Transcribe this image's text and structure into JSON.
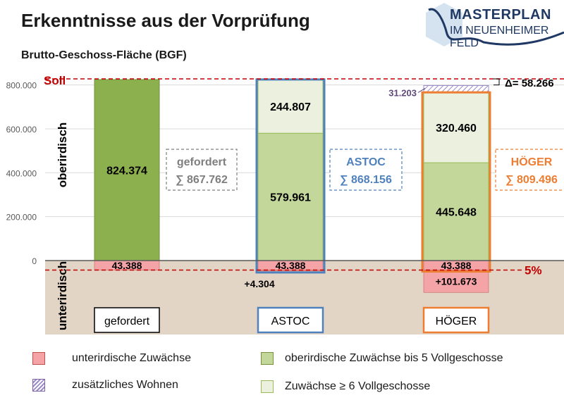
{
  "title": "Erkenntnisse aus der Vorprüfung",
  "subtitle": "Brutto-Geschoss-Fläche (BGF)",
  "logo": {
    "line1": "MASTERPLAN",
    "line2": "IM NEUENHEIMER FELD"
  },
  "colors": {
    "unterirdisch": "#f4a3a6",
    "oberirdisch": "#c4d79b",
    "vollgeschosse": "#ebf1de",
    "gefordert_bar": "#8db04e",
    "astoc": "#4f81bd",
    "hoeger": "#ed7d31",
    "gefordert_box": "#7f7f7f",
    "soll": "#c00000",
    "underground_bg": "#e3d5c6",
    "wohnen": "#9a8cc8"
  },
  "chart_data": {
    "type": "bar",
    "stacked": true,
    "ylim": [
      -137000,
      870000
    ],
    "yticks": [
      0,
      200000,
      400000,
      600000,
      800000
    ],
    "ytick_labels": [
      "0",
      "200.000",
      "400.000",
      "600.000",
      "800.000"
    ],
    "ylabel_above": "oberirdisch",
    "ylabel_below": "unterirdisch",
    "categories": [
      "gefordert",
      "ASTOC",
      "HÖGER"
    ],
    "bars": [
      {
        "name": "gefordert",
        "base_underground": 43388,
        "base_underground_label": "43.388",
        "extra_underground": 0,
        "extra_underground_label": "",
        "overground": 824374,
        "overground_label": "824.374",
        "upper": 0,
        "upper_label": "",
        "wohnen": 0,
        "wohnen_label": "",
        "sum_title": "gefordert",
        "sum_label": "∑ 867.762"
      },
      {
        "name": "ASTOC",
        "base_underground": 43388,
        "base_underground_label": "43.388",
        "extra_underground": 4304,
        "extra_underground_label": "+4.304",
        "overground": 579961,
        "overground_label": "579.961",
        "upper": 244807,
        "upper_label": "244.807",
        "wohnen": 0,
        "wohnen_label": "",
        "sum_title": "ASTOC",
        "sum_label": "∑ 868.156"
      },
      {
        "name": "HÖGER",
        "base_underground": 43388,
        "base_underground_label": "43.388",
        "extra_underground": 101673,
        "extra_underground_label": "+101.673",
        "overground": 445648,
        "overground_label": "445.648",
        "upper": 320460,
        "upper_label": "320.460",
        "wohnen": 31203,
        "wohnen_label": "31.203",
        "sum_title": "HÖGER",
        "sum_label": "∑ 809.496"
      }
    ],
    "soll": {
      "value": 824374,
      "label": "Soll"
    },
    "five_percent": {
      "value": -43388,
      "label": "5%"
    },
    "delta": {
      "label": "Δ= 58.266"
    }
  },
  "legend": [
    {
      "label": "unterirdische Zuwächse",
      "swatch": "unterirdisch"
    },
    {
      "label": "oberirdische Zuwächse bis 5 Vollgeschosse",
      "swatch": "oberirdisch"
    },
    {
      "label": "zusätzliches Wohnen",
      "swatch": "wohnen"
    },
    {
      "label": "Zuwächse ≥ 6 Vollgeschosse",
      "swatch": "vollgeschosse"
    }
  ]
}
